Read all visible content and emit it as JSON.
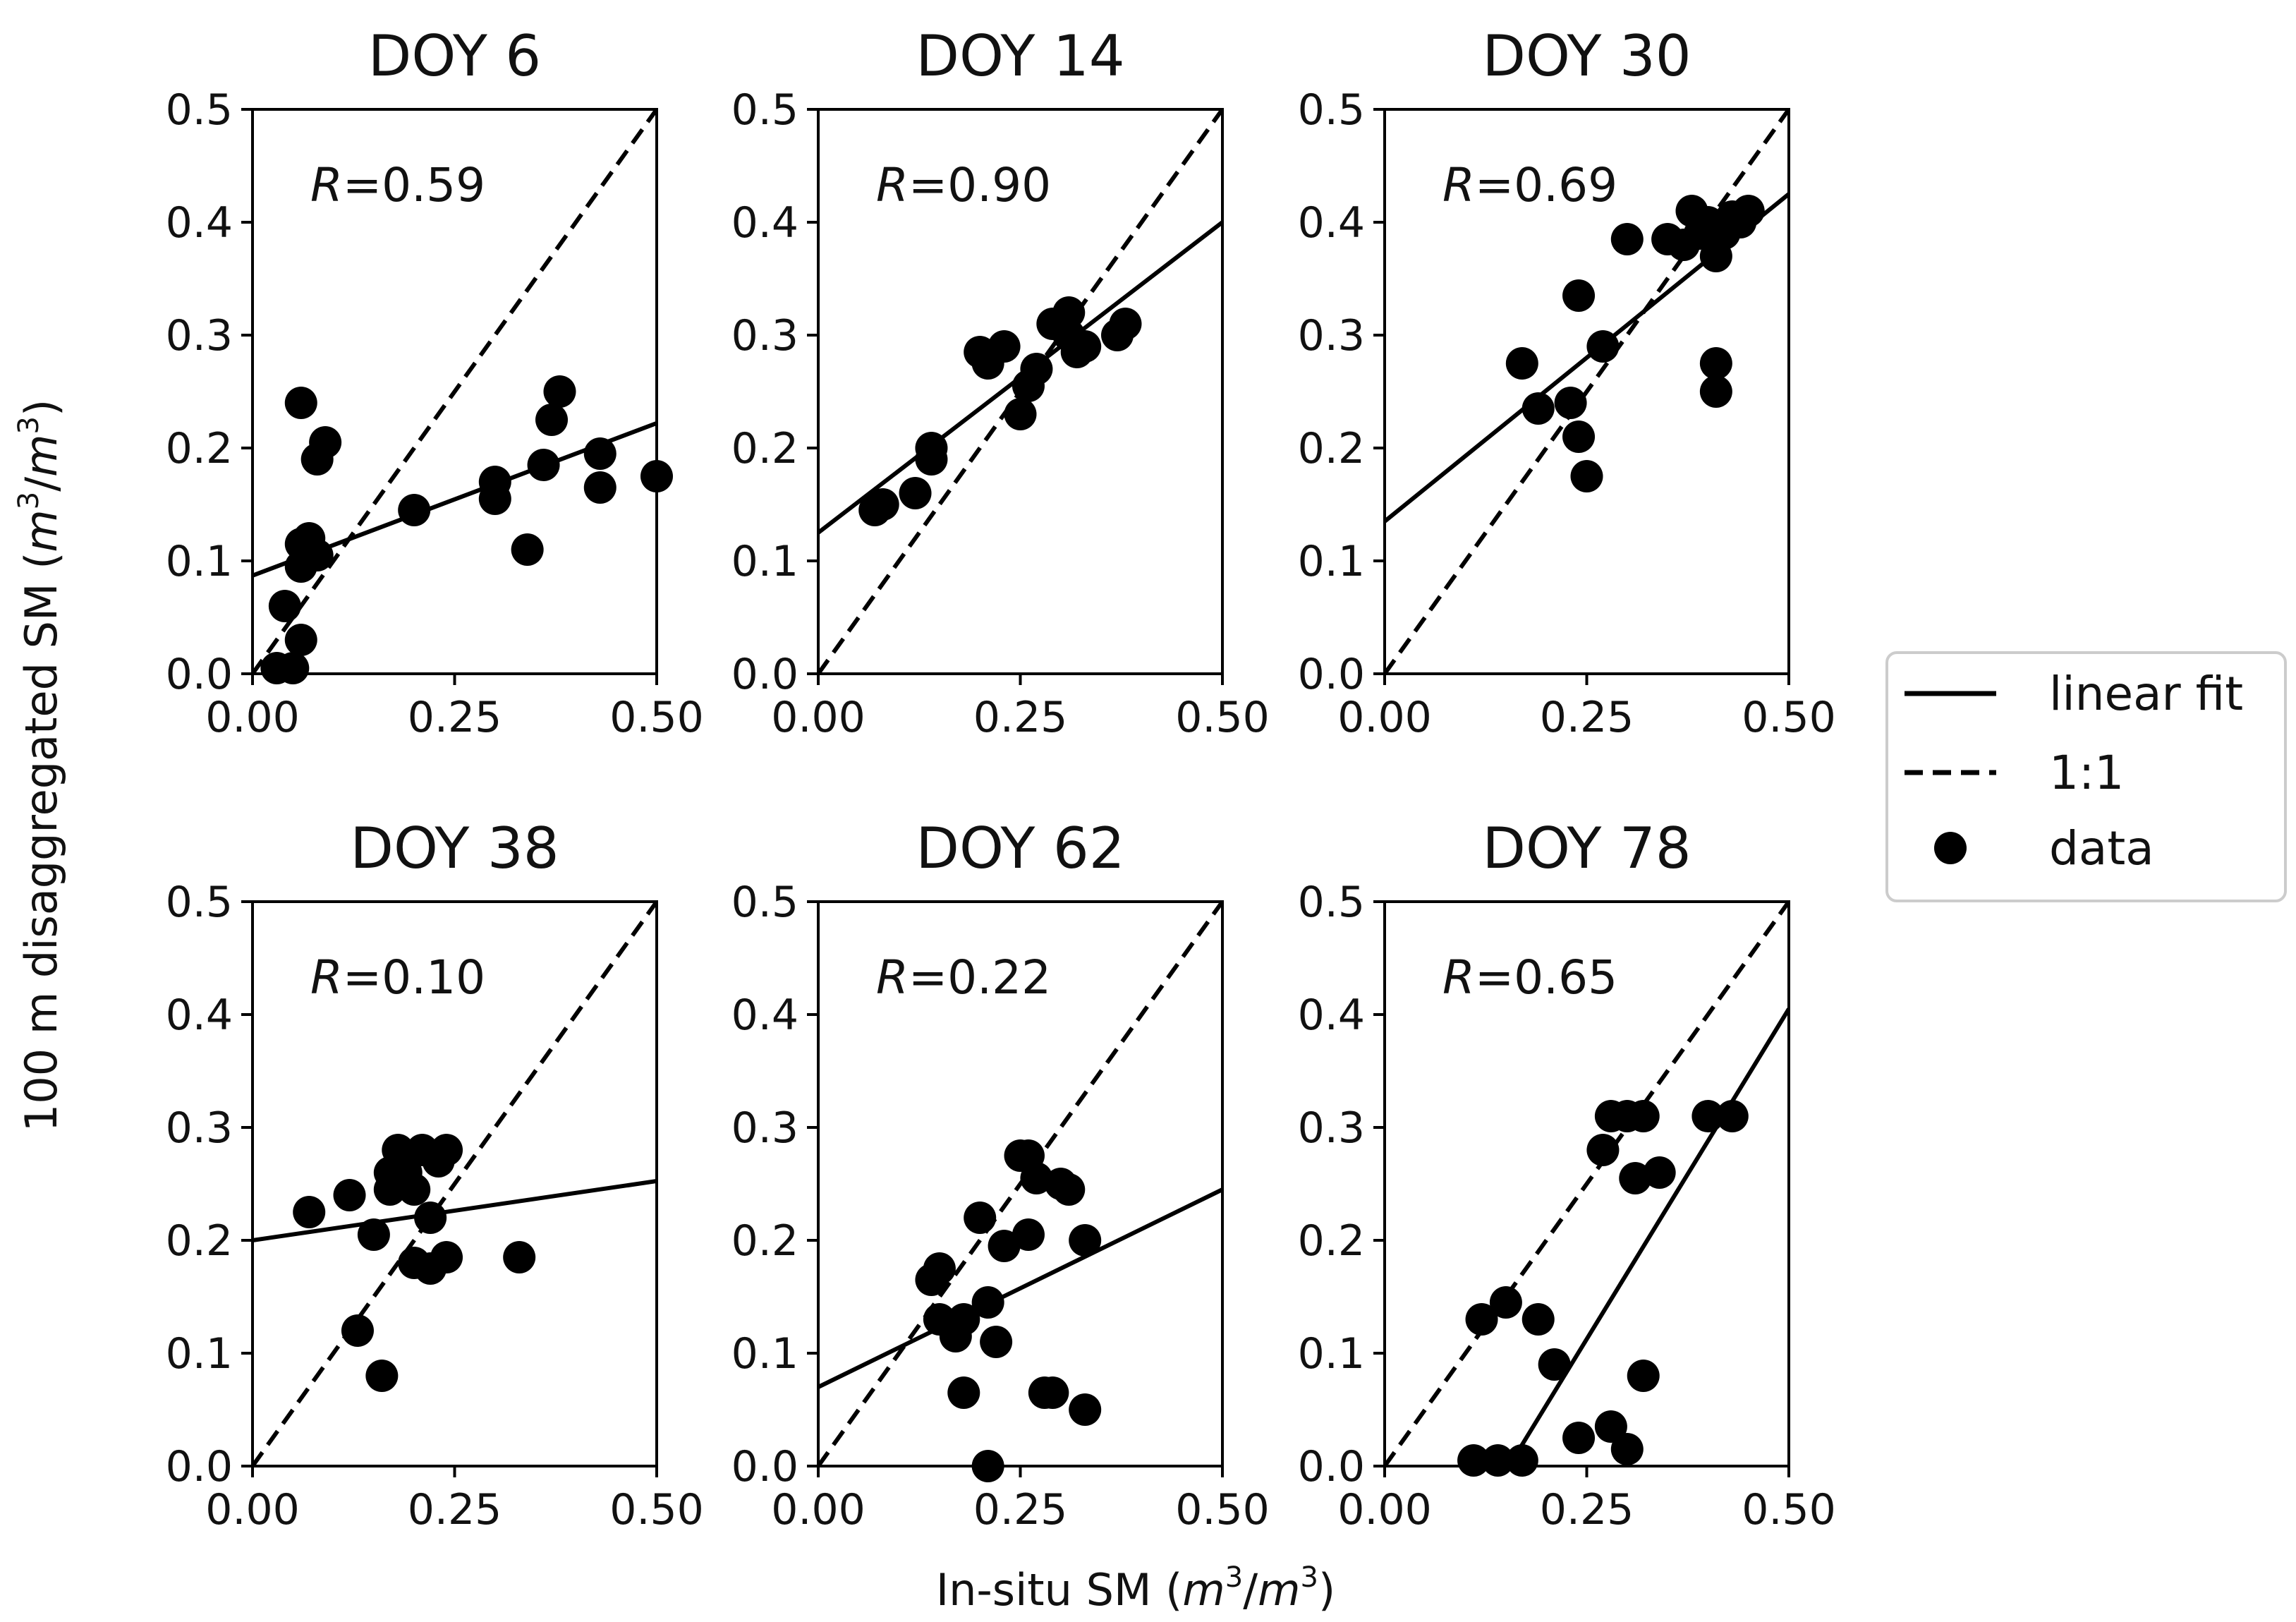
{
  "figure": {
    "xlabel": "In-situ SM",
    "ylabel": "100 m disaggregated SM",
    "unit": {
      "m": "m",
      "sup": "3",
      "slash": "/"
    },
    "legend": {
      "placement": "right",
      "items": [
        {
          "label": "linear fit",
          "style": "solid"
        },
        {
          "label": "1:1",
          "style": "dashed"
        },
        {
          "label": "data",
          "style": "marker"
        }
      ]
    },
    "colors": {
      "marks": "#000000"
    }
  },
  "chart_data": [
    {
      "type": "scatter",
      "title": "DOY 6",
      "r_symbol": "R",
      "r_value": "=0.59",
      "xlim": [
        0,
        0.5
      ],
      "ylim": [
        0,
        0.5
      ],
      "xticks": [
        "0.00",
        "0.25",
        "0.50"
      ],
      "yticks": [
        "0.0",
        "0.1",
        "0.2",
        "0.3",
        "0.4",
        "0.5"
      ],
      "fit": {
        "intercept": 0.087,
        "slope": 0.27
      },
      "points": [
        [
          0.03,
          0.005
        ],
        [
          0.05,
          0.005
        ],
        [
          0.04,
          0.06
        ],
        [
          0.06,
          0.03
        ],
        [
          0.06,
          0.095
        ],
        [
          0.06,
          0.115
        ],
        [
          0.07,
          0.12
        ],
        [
          0.08,
          0.105
        ],
        [
          0.06,
          0.24
        ],
        [
          0.08,
          0.19
        ],
        [
          0.09,
          0.205
        ],
        [
          0.2,
          0.145
        ],
        [
          0.3,
          0.17
        ],
        [
          0.3,
          0.155
        ],
        [
          0.34,
          0.11
        ],
        [
          0.36,
          0.185
        ],
        [
          0.37,
          0.225
        ],
        [
          0.38,
          0.25
        ],
        [
          0.43,
          0.195
        ],
        [
          0.43,
          0.165
        ],
        [
          0.5,
          0.175
        ]
      ]
    },
    {
      "type": "scatter",
      "title": "DOY 14",
      "r_symbol": "R",
      "r_value": "=0.90",
      "xlim": [
        0,
        0.5
      ],
      "ylim": [
        0,
        0.5
      ],
      "xticks": [
        "0.00",
        "0.25",
        "0.50"
      ],
      "yticks": [
        "0.0",
        "0.1",
        "0.2",
        "0.3",
        "0.4",
        "0.5"
      ],
      "fit": {
        "intercept": 0.125,
        "slope": 0.55
      },
      "points": [
        [
          0.07,
          0.145
        ],
        [
          0.08,
          0.15
        ],
        [
          0.12,
          0.16
        ],
        [
          0.14,
          0.2
        ],
        [
          0.14,
          0.19
        ],
        [
          0.2,
          0.285
        ],
        [
          0.21,
          0.275
        ],
        [
          0.23,
          0.29
        ],
        [
          0.25,
          0.23
        ],
        [
          0.26,
          0.255
        ],
        [
          0.27,
          0.27
        ],
        [
          0.29,
          0.31
        ],
        [
          0.31,
          0.32
        ],
        [
          0.31,
          0.3
        ],
        [
          0.32,
          0.285
        ],
        [
          0.33,
          0.29
        ],
        [
          0.37,
          0.3
        ],
        [
          0.38,
          0.31
        ]
      ]
    },
    {
      "type": "scatter",
      "title": "DOY 30",
      "r_symbol": "R",
      "r_value": "=0.69",
      "xlim": [
        0,
        0.5
      ],
      "ylim": [
        0,
        0.5
      ],
      "xticks": [
        "0.00",
        "0.25",
        "0.50"
      ],
      "yticks": [
        "0.0",
        "0.1",
        "0.2",
        "0.3",
        "0.4",
        "0.5"
      ],
      "fit": {
        "intercept": 0.135,
        "slope": 0.58
      },
      "points": [
        [
          0.17,
          0.275
        ],
        [
          0.19,
          0.235
        ],
        [
          0.23,
          0.24
        ],
        [
          0.24,
          0.21
        ],
        [
          0.24,
          0.335
        ],
        [
          0.25,
          0.175
        ],
        [
          0.27,
          0.29
        ],
        [
          0.3,
          0.385
        ],
        [
          0.35,
          0.385
        ],
        [
          0.37,
          0.38
        ],
        [
          0.38,
          0.41
        ],
        [
          0.39,
          0.39
        ],
        [
          0.4,
          0.4
        ],
        [
          0.41,
          0.37
        ],
        [
          0.41,
          0.275
        ],
        [
          0.41,
          0.25
        ],
        [
          0.42,
          0.39
        ],
        [
          0.43,
          0.405
        ],
        [
          0.44,
          0.4
        ],
        [
          0.45,
          0.41
        ]
      ]
    },
    {
      "type": "scatter",
      "title": "DOY 38",
      "r_symbol": "R",
      "r_value": "=0.10",
      "xlim": [
        0,
        0.5
      ],
      "ylim": [
        0,
        0.5
      ],
      "xticks": [
        "0.00",
        "0.25",
        "0.50"
      ],
      "yticks": [
        "0.0",
        "0.1",
        "0.2",
        "0.3",
        "0.4",
        "0.5"
      ],
      "fit": {
        "intercept": 0.2,
        "slope": 0.105
      },
      "points": [
        [
          0.07,
          0.225
        ],
        [
          0.12,
          0.24
        ],
        [
          0.13,
          0.12
        ],
        [
          0.15,
          0.205
        ],
        [
          0.16,
          0.08
        ],
        [
          0.17,
          0.245
        ],
        [
          0.17,
          0.26
        ],
        [
          0.18,
          0.28
        ],
        [
          0.19,
          0.26
        ],
        [
          0.2,
          0.18
        ],
        [
          0.2,
          0.245
        ],
        [
          0.21,
          0.28
        ],
        [
          0.22,
          0.175
        ],
        [
          0.22,
          0.22
        ],
        [
          0.23,
          0.27
        ],
        [
          0.24,
          0.28
        ],
        [
          0.24,
          0.185
        ],
        [
          0.33,
          0.185
        ]
      ]
    },
    {
      "type": "scatter",
      "title": "DOY 62",
      "r_symbol": "R",
      "r_value": "=0.22",
      "xlim": [
        0,
        0.5
      ],
      "ylim": [
        0,
        0.5
      ],
      "xticks": [
        "0.00",
        "0.25",
        "0.50"
      ],
      "yticks": [
        "0.0",
        "0.1",
        "0.2",
        "0.3",
        "0.4",
        "0.5"
      ],
      "fit": {
        "intercept": 0.07,
        "slope": 0.35
      },
      "points": [
        [
          0.14,
          0.165
        ],
        [
          0.15,
          0.175
        ],
        [
          0.15,
          0.13
        ],
        [
          0.17,
          0.115
        ],
        [
          0.18,
          0.13
        ],
        [
          0.18,
          0.065
        ],
        [
          0.2,
          0.22
        ],
        [
          0.21,
          0.145
        ],
        [
          0.21,
          0.0
        ],
        [
          0.22,
          0.11
        ],
        [
          0.23,
          0.195
        ],
        [
          0.25,
          0.275
        ],
        [
          0.26,
          0.205
        ],
        [
          0.26,
          0.275
        ],
        [
          0.27,
          0.255
        ],
        [
          0.28,
          0.065
        ],
        [
          0.29,
          0.065
        ],
        [
          0.3,
          0.25
        ],
        [
          0.31,
          0.245
        ],
        [
          0.33,
          0.2
        ],
        [
          0.33,
          0.05
        ]
      ]
    },
    {
      "type": "scatter",
      "title": "DOY 78",
      "r_symbol": "R",
      "r_value": "=0.65",
      "xlim": [
        0,
        0.5
      ],
      "ylim": [
        0,
        0.5
      ],
      "xticks": [
        "0.00",
        "0.25",
        "0.50"
      ],
      "yticks": [
        "0.0",
        "0.1",
        "0.2",
        "0.3",
        "0.4",
        "0.5"
      ],
      "fit": {
        "intercept": -0.18,
        "slope": 1.17
      },
      "points": [
        [
          0.11,
          0.005
        ],
        [
          0.12,
          0.13
        ],
        [
          0.14,
          0.005
        ],
        [
          0.15,
          0.145
        ],
        [
          0.17,
          0.005
        ],
        [
          0.19,
          0.13
        ],
        [
          0.21,
          0.09
        ],
        [
          0.24,
          0.025
        ],
        [
          0.27,
          0.28
        ],
        [
          0.28,
          0.31
        ],
        [
          0.28,
          0.035
        ],
        [
          0.3,
          0.31
        ],
        [
          0.3,
          0.015
        ],
        [
          0.31,
          0.255
        ],
        [
          0.32,
          0.31
        ],
        [
          0.32,
          0.08
        ],
        [
          0.34,
          0.26
        ],
        [
          0.4,
          0.31
        ],
        [
          0.43,
          0.31
        ]
      ]
    }
  ]
}
